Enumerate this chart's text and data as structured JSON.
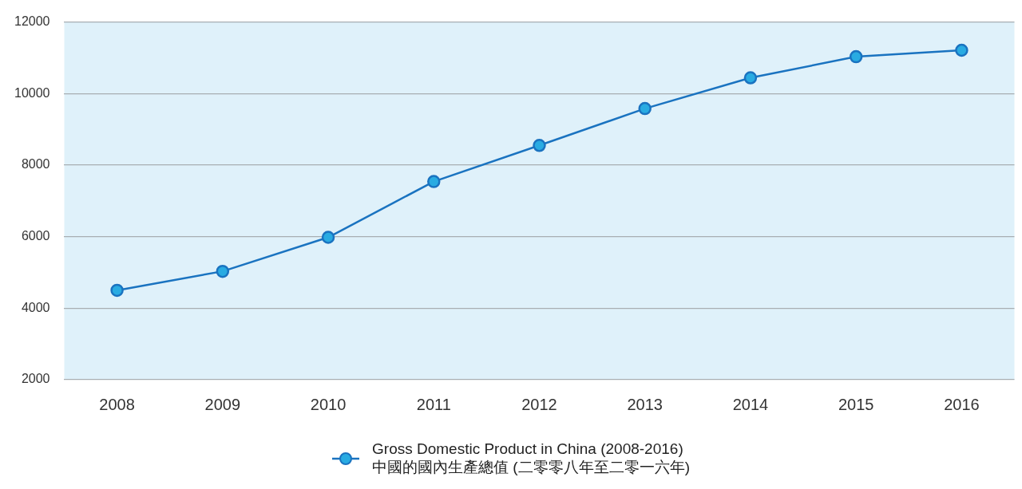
{
  "chart_data": {
    "type": "line",
    "categories": [
      "2008",
      "2009",
      "2010",
      "2011",
      "2012",
      "2013",
      "2014",
      "2015",
      "2016"
    ],
    "series": [
      {
        "name": "Gross Domestic Product in China (2008-2016)\n中國的國內生產總值 (二零零八年至二零一六年)",
        "color": "#1a73c0",
        "values": [
          4500,
          5030,
          5980,
          7540,
          8550,
          9580,
          10440,
          11030,
          11210
        ]
      }
    ],
    "ylim": [
      2000,
      12000
    ],
    "yticks": [
      2000,
      4000,
      6000,
      8000,
      10000,
      12000
    ],
    "grid": "y",
    "legend": "bottom",
    "marker": "circle",
    "line_style": "solid"
  }
}
